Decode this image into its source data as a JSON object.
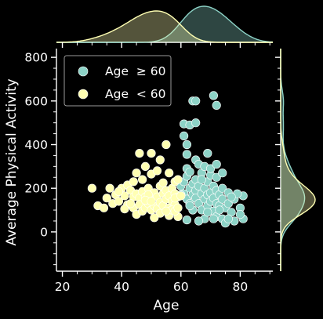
{
  "chart_data": {
    "type": "scatter",
    "title": "",
    "xlabel": "Age",
    "ylabel": "Average Physical Activity",
    "xlim": [
      18,
      91
    ],
    "ylim": [
      -180,
      840
    ],
    "xticks": [
      20,
      40,
      60,
      80
    ],
    "yticks": [
      0,
      200,
      400,
      600,
      800
    ],
    "grid": false,
    "legend_position": "top-left",
    "marginals": "kde",
    "colors": {
      "background": "#000000",
      "foreground": "#ffffff"
    },
    "series": [
      {
        "name": "Age  ≥ 60",
        "color": "#8dd3c7",
        "points": [
          [
            60,
            210
          ],
          [
            61,
            230
          ],
          [
            61,
            175
          ],
          [
            62,
            255
          ],
          [
            62,
            150
          ],
          [
            63,
            200
          ],
          [
            63,
            130
          ],
          [
            64,
            220
          ],
          [
            64,
            170
          ],
          [
            65,
            240
          ],
          [
            65,
            190
          ],
          [
            65,
            155
          ],
          [
            66,
            210
          ],
          [
            66,
            130
          ],
          [
            67,
            270
          ],
          [
            67,
            175
          ],
          [
            67,
            100
          ],
          [
            68,
            200
          ],
          [
            68,
            150
          ],
          [
            68,
            60
          ],
          [
            69,
            230
          ],
          [
            69,
            170
          ],
          [
            69,
            120
          ],
          [
            70,
            260
          ],
          [
            70,
            180
          ],
          [
            70,
            140
          ],
          [
            71,
            210
          ],
          [
            71,
            155
          ],
          [
            71,
            95
          ],
          [
            72,
            250
          ],
          [
            72,
            190
          ],
          [
            72,
            130
          ],
          [
            72,
            70
          ],
          [
            73,
            170
          ],
          [
            73,
            120
          ],
          [
            74,
            200
          ],
          [
            74,
            150
          ],
          [
            74,
            60
          ],
          [
            75,
            110
          ],
          [
            75,
            40
          ],
          [
            76,
            180
          ],
          [
            76,
            130
          ],
          [
            77,
            90
          ],
          [
            78,
            50
          ],
          [
            78,
            150
          ],
          [
            80,
            110
          ],
          [
            81,
            165
          ],
          [
            81,
            60
          ],
          [
            80,
            80
          ],
          [
            79,
            175
          ],
          [
            77,
            160
          ],
          [
            73,
            100
          ],
          [
            71,
            60
          ],
          [
            69,
            90
          ],
          [
            66,
            50
          ],
          [
            64,
            100
          ],
          [
            62,
            55
          ],
          [
            62,
            290
          ],
          [
            63,
            275
          ],
          [
            65,
            330
          ],
          [
            66,
            310
          ],
          [
            68,
            300
          ],
          [
            70,
            290
          ],
          [
            72,
            310
          ],
          [
            74,
            270
          ],
          [
            69,
            360
          ],
          [
            61,
            495
          ],
          [
            63,
            490
          ],
          [
            65,
            500
          ],
          [
            61,
            440
          ],
          [
            62,
            400
          ],
          [
            62,
            355
          ],
          [
            64,
            600
          ],
          [
            65,
            600
          ],
          [
            71,
            625
          ],
          [
            72,
            580
          ],
          [
            67,
            240
          ],
          [
            63,
            120
          ],
          [
            60,
            170
          ],
          [
            76,
            60
          ]
        ]
      },
      {
        "name": "Age  < 60",
        "color": "#ffffb3",
        "points": [
          [
            30,
            200
          ],
          [
            32,
            120
          ],
          [
            34,
            110
          ],
          [
            35,
            155
          ],
          [
            36,
            200
          ],
          [
            37,
            130
          ],
          [
            38,
            170
          ],
          [
            39,
            140
          ],
          [
            40,
            200
          ],
          [
            41,
            165
          ],
          [
            42,
            215
          ],
          [
            42,
            125
          ],
          [
            43,
            190
          ],
          [
            44,
            160
          ],
          [
            44,
            110
          ],
          [
            45,
            175
          ],
          [
            45,
            80
          ],
          [
            46,
            155
          ],
          [
            46,
            125
          ],
          [
            47,
            185
          ],
          [
            47,
            95
          ],
          [
            48,
            160
          ],
          [
            48,
            110
          ],
          [
            49,
            200
          ],
          [
            49,
            130
          ],
          [
            50,
            150
          ],
          [
            50,
            100
          ],
          [
            51,
            180
          ],
          [
            51,
            120
          ],
          [
            52,
            160
          ],
          [
            52,
            105
          ],
          [
            53,
            210
          ],
          [
            53,
            135
          ],
          [
            54,
            175
          ],
          [
            54,
            120
          ],
          [
            55,
            190
          ],
          [
            55,
            150
          ],
          [
            56,
            165
          ],
          [
            56,
            110
          ],
          [
            57,
            200
          ],
          [
            57,
            140
          ],
          [
            58,
            175
          ],
          [
            58,
            125
          ],
          [
            59,
            160
          ],
          [
            59,
            70
          ],
          [
            56,
            75
          ],
          [
            53,
            85
          ],
          [
            51,
            65
          ],
          [
            57,
            100
          ],
          [
            58,
            95
          ],
          [
            46,
            360
          ],
          [
            50,
            360
          ],
          [
            55,
            400
          ],
          [
            53,
            330
          ],
          [
            48,
            300
          ],
          [
            45,
            270
          ],
          [
            50,
            265
          ],
          [
            56,
            270
          ],
          [
            58,
            230
          ],
          [
            59,
            240
          ],
          [
            54,
            225
          ],
          [
            47,
            240
          ],
          [
            44,
            230
          ],
          [
            39,
            185
          ],
          [
            41,
            105
          ],
          [
            43,
            130
          ],
          [
            49,
            170
          ],
          [
            55,
            95
          ],
          [
            58,
            155
          ],
          [
            52,
            280
          ],
          [
            60,
            165
          ],
          [
            59,
            110
          ],
          [
            48,
            145
          ],
          [
            50,
            140
          ]
        ]
      }
    ]
  }
}
